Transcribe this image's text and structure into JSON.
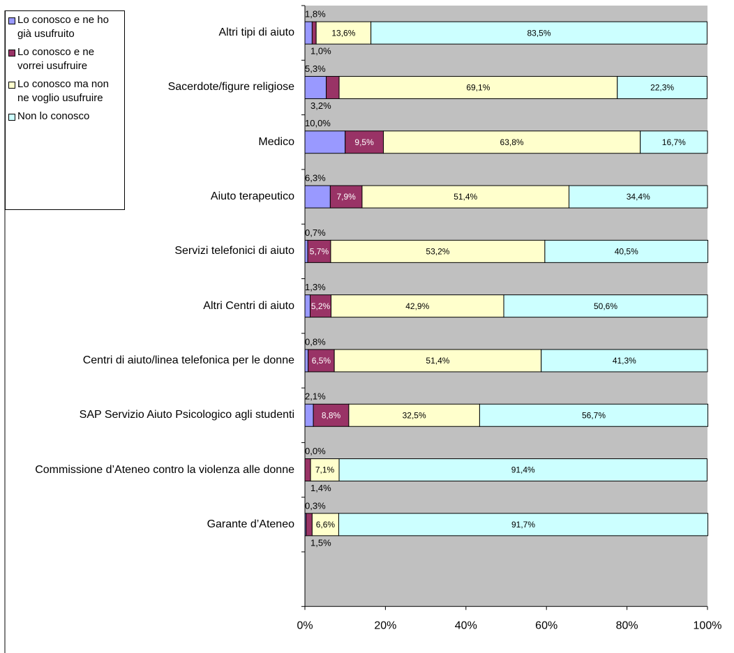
{
  "chart_data": {
    "type": "stacked-bar-horizontal",
    "categories": [
      "Altri tipi di aiuto",
      "Sacerdote/figure religiose",
      "Medico",
      "Aiuto terapeutico",
      "Servizi telefonici di aiuto",
      "Altri Centri di aiuto",
      "Centri di aiuto/linea telefonica per le donne",
      "SAP Servizio Aiuto Psicologico agli studenti",
      "Commissione d’Ateneo contro la violenza alle donne",
      "Garante d’Ateneo"
    ],
    "series": [
      {
        "name": "Lo conosco e ne ho già usufruito",
        "color": "#9999ff",
        "values": [
          1.8,
          5.3,
          10.0,
          6.3,
          0.7,
          1.3,
          0.8,
          2.1,
          0.0,
          0.3
        ],
        "value_labels": [
          "1,8%",
          "5,3%",
          "10,0%",
          "6,3%",
          "0,7%",
          "1,3%",
          "0,8%",
          "2,1%",
          "0,0%",
          "0,3%"
        ]
      },
      {
        "name": "Lo conosco e ne vorrei usufruire",
        "color": "#993366",
        "values": [
          1.0,
          3.2,
          9.5,
          7.9,
          5.7,
          5.2,
          6.5,
          8.8,
          1.4,
          1.5
        ],
        "value_labels": [
          "1,0%",
          "3,2%",
          "9,5%",
          "7,9%",
          "5,7%",
          "5,2%",
          "6,5%",
          "8,8%",
          "1,4%",
          "1,5%"
        ]
      },
      {
        "name": "Lo conosco ma non ne voglio usufruire",
        "color": "#ffffcc",
        "values": [
          13.6,
          69.1,
          63.8,
          51.4,
          53.2,
          42.9,
          51.4,
          32.5,
          7.1,
          6.6
        ],
        "value_labels": [
          "13,6%",
          "69,1%",
          "63,8%",
          "51,4%",
          "53,2%",
          "42,9%",
          "51,4%",
          "32,5%",
          "7,1%",
          "6,6%"
        ]
      },
      {
        "name": "Non lo conosco",
        "color": "#ccffff",
        "values": [
          83.5,
          22.3,
          16.7,
          34.4,
          40.5,
          50.6,
          41.3,
          56.7,
          91.4,
          91.7
        ],
        "value_labels": [
          "83,5%",
          "22,3%",
          "16,7%",
          "34,4%",
          "40,5%",
          "50,6%",
          "41,3%",
          "56,7%",
          "91,4%",
          "91,7%"
        ]
      }
    ],
    "xlim": [
      0,
      100
    ],
    "xticks": [
      {
        "value": 0,
        "label": "0%"
      },
      {
        "value": 20,
        "label": "20%"
      },
      {
        "value": 40,
        "label": "40%"
      },
      {
        "value": 60,
        "label": "60%"
      },
      {
        "value": 80,
        "label": "80%"
      },
      {
        "value": 100,
        "label": "100%"
      }
    ],
    "plot_background": "#c0c0c0",
    "legend": "top-left"
  }
}
